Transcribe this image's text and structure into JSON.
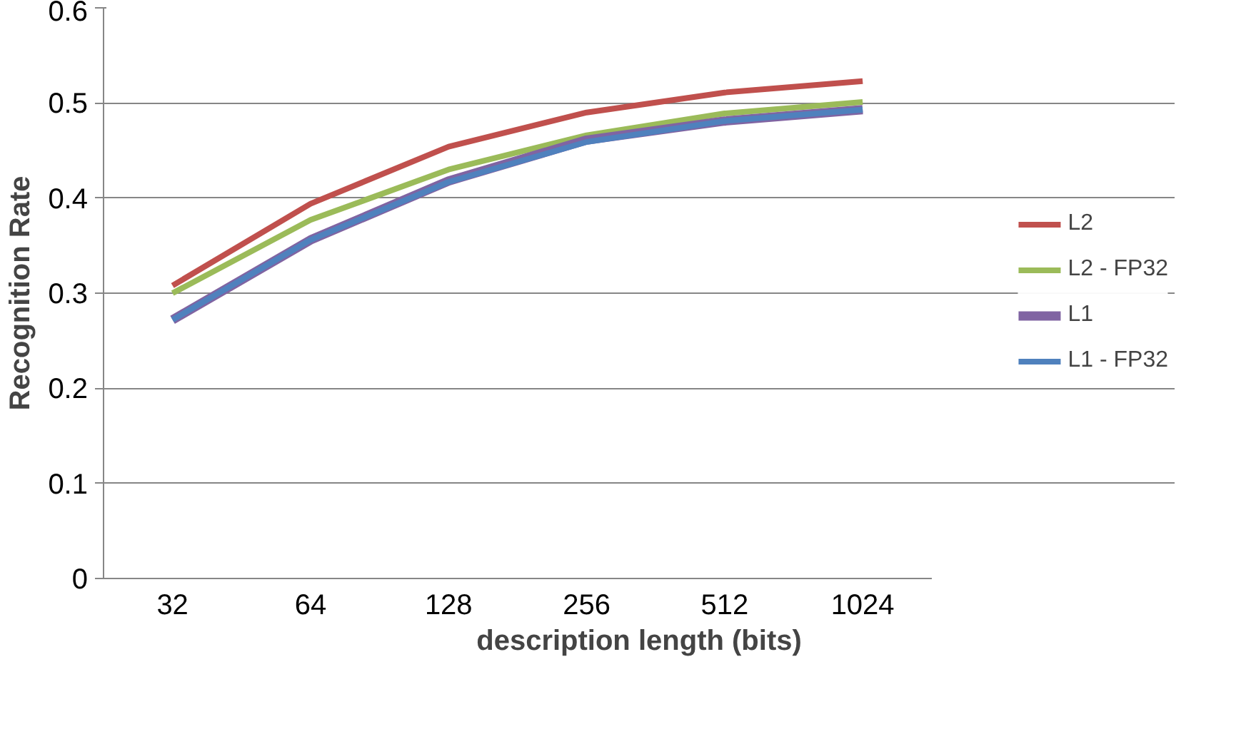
{
  "chart_data": {
    "type": "line",
    "xlabel": "description length (bits)",
    "ylabel": "Recognition Rate",
    "categories": [
      "32",
      "64",
      "128",
      "256",
      "512",
      "1024"
    ],
    "series": [
      {
        "name": "L2",
        "color": "#c0504d",
        "values": [
          0.308,
          0.394,
          0.454,
          0.49,
          0.511,
          0.523
        ]
      },
      {
        "name": "L2 - FP32",
        "color": "#9bbb59",
        "values": [
          0.3,
          0.377,
          0.43,
          0.466,
          0.489,
          0.501
        ]
      },
      {
        "name": "L1",
        "color": "#8064a2",
        "values": [
          0.272,
          0.356,
          0.418,
          0.461,
          0.481,
          0.493
        ]
      },
      {
        "name": "L1 - FP32",
        "color": "#4f81bd",
        "values": [
          0.272,
          0.356,
          0.417,
          0.459,
          0.481,
          0.493
        ]
      }
    ],
    "ylim": [
      0,
      0.6
    ],
    "yticks": [
      0,
      0.1,
      0.2,
      0.3,
      0.4,
      0.5,
      0.6
    ],
    "grid": "y",
    "legend": "right",
    "marker": "none",
    "line_style": "solid"
  }
}
